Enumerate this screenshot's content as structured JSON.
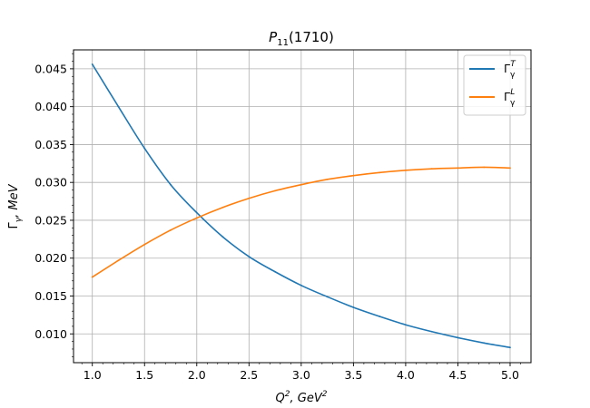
{
  "chart_data": {
    "type": "line",
    "title": "P11(1710)",
    "title_main": "P",
    "title_sub": "11",
    "title_tail": "(1710)",
    "xlabel": "Q², GeV²",
    "xlabel_main": "Q",
    "xlabel_sup1": "2",
    "xlabel_mid": ", GeV",
    "xlabel_sup2": "2",
    "ylabel": "Γγ, MeV",
    "ylabel_main": "Γ",
    "ylabel_sub": "γ",
    "ylabel_tail": ", MeV",
    "xlim": [
      0.82,
      5.2
    ],
    "ylim": [
      0.0062,
      0.0475
    ],
    "x_ticks": [
      1.0,
      1.5,
      2.0,
      2.5,
      3.0,
      3.5,
      4.0,
      4.5,
      5.0
    ],
    "x_tick_labels": [
      "1.0",
      "1.5",
      "2.0",
      "2.5",
      "3.0",
      "3.5",
      "4.0",
      "4.5",
      "5.0"
    ],
    "y_ticks": [
      0.01,
      0.015,
      0.02,
      0.025,
      0.03,
      0.035,
      0.04,
      0.045
    ],
    "y_tick_labels": [
      "0.010",
      "0.015",
      "0.020",
      "0.025",
      "0.030",
      "0.035",
      "0.040",
      "0.045"
    ],
    "grid": true,
    "legend_position": "top-right",
    "x": [
      1.0,
      1.25,
      1.5,
      1.75,
      2.0,
      2.25,
      2.5,
      2.75,
      3.0,
      3.25,
      3.5,
      3.75,
      4.0,
      4.25,
      4.5,
      4.75,
      5.0
    ],
    "series": [
      {
        "name": "ΓγT",
        "name_main": "Γ",
        "name_sub": "γ",
        "name_sup": "T",
        "color": "#1f77b4",
        "values": [
          0.0456,
          0.04,
          0.0345,
          0.0297,
          0.026,
          0.0228,
          0.0202,
          0.0182,
          0.0164,
          0.0149,
          0.0135,
          0.0123,
          0.0112,
          0.0103,
          0.0095,
          0.0088,
          0.0082
        ]
      },
      {
        "name": "ΓγL",
        "name_main": "Γ",
        "name_sub": "γ",
        "name_sup": "L",
        "color": "#ff7f0e",
        "values": [
          0.0175,
          0.0197,
          0.0218,
          0.0237,
          0.0253,
          0.0267,
          0.0279,
          0.0289,
          0.0297,
          0.0304,
          0.0309,
          0.0313,
          0.0316,
          0.0318,
          0.0319,
          0.032,
          0.0319
        ]
      }
    ]
  }
}
